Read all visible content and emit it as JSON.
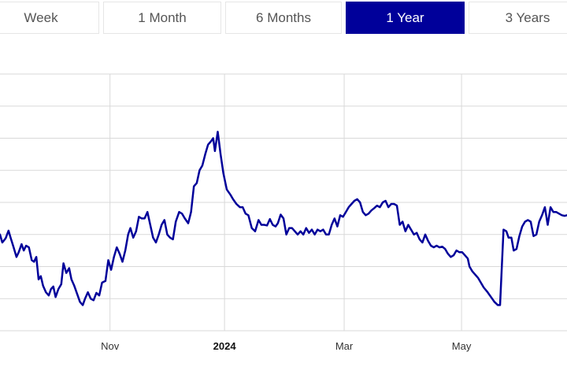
{
  "tabs": [
    {
      "label": "Week",
      "active": false
    },
    {
      "label": "1 Month",
      "active": false
    },
    {
      "label": "6 Months",
      "active": false
    },
    {
      "label": "1 Year",
      "active": true
    },
    {
      "label": "3 Years",
      "active": false
    }
  ],
  "colors": {
    "accent": "#00009a",
    "line": "#00009a",
    "grid": "#d9d9d9"
  },
  "chart_data": {
    "type": "line",
    "title": "",
    "xlabel": "",
    "ylabel": "",
    "grid": true,
    "legend": "none",
    "x_ticks": [
      {
        "label": "Nov",
        "x": 0.194,
        "bold": false
      },
      {
        "label": "2024",
        "x": 0.396,
        "bold": true
      },
      {
        "label": "Mar",
        "x": 0.607,
        "bold": false
      },
      {
        "label": "May",
        "x": 0.814,
        "bold": false
      }
    ],
    "y_gridline_count": 8,
    "ylim": [
      0,
      8
    ],
    "series": [
      {
        "points": [
          [
            0.0,
            3.0
          ],
          [
            0.004,
            2.75
          ],
          [
            0.01,
            2.88
          ],
          [
            0.015,
            3.12
          ],
          [
            0.019,
            2.88
          ],
          [
            0.024,
            2.6
          ],
          [
            0.029,
            2.3
          ],
          [
            0.033,
            2.45
          ],
          [
            0.038,
            2.7
          ],
          [
            0.042,
            2.5
          ],
          [
            0.046,
            2.65
          ],
          [
            0.051,
            2.6
          ],
          [
            0.056,
            2.2
          ],
          [
            0.06,
            2.15
          ],
          [
            0.064,
            2.3
          ],
          [
            0.068,
            1.6
          ],
          [
            0.072,
            1.7
          ],
          [
            0.076,
            1.4
          ],
          [
            0.081,
            1.2
          ],
          [
            0.086,
            1.1
          ],
          [
            0.09,
            1.3
          ],
          [
            0.094,
            1.38
          ],
          [
            0.098,
            1.05
          ],
          [
            0.103,
            1.3
          ],
          [
            0.108,
            1.45
          ],
          [
            0.112,
            2.1
          ],
          [
            0.117,
            1.8
          ],
          [
            0.122,
            1.95
          ],
          [
            0.126,
            1.6
          ],
          [
            0.131,
            1.4
          ],
          [
            0.136,
            1.15
          ],
          [
            0.141,
            0.9
          ],
          [
            0.146,
            0.8
          ],
          [
            0.15,
            1.0
          ],
          [
            0.155,
            1.2
          ],
          [
            0.16,
            1.0
          ],
          [
            0.165,
            0.95
          ],
          [
            0.17,
            1.18
          ],
          [
            0.175,
            1.1
          ],
          [
            0.18,
            1.5
          ],
          [
            0.186,
            1.55
          ],
          [
            0.191,
            2.2
          ],
          [
            0.196,
            1.9
          ],
          [
            0.201,
            2.3
          ],
          [
            0.206,
            2.6
          ],
          [
            0.211,
            2.4
          ],
          [
            0.216,
            2.15
          ],
          [
            0.221,
            2.5
          ],
          [
            0.226,
            3.0
          ],
          [
            0.23,
            3.2
          ],
          [
            0.235,
            2.9
          ],
          [
            0.24,
            3.1
          ],
          [
            0.245,
            3.55
          ],
          [
            0.25,
            3.5
          ],
          [
            0.255,
            3.5
          ],
          [
            0.26,
            3.7
          ],
          [
            0.265,
            3.3
          ],
          [
            0.27,
            2.9
          ],
          [
            0.275,
            2.75
          ],
          [
            0.28,
            3.0
          ],
          [
            0.285,
            3.3
          ],
          [
            0.29,
            3.45
          ],
          [
            0.295,
            3.0
          ],
          [
            0.3,
            2.9
          ],
          [
            0.305,
            2.85
          ],
          [
            0.31,
            3.4
          ],
          [
            0.316,
            3.7
          ],
          [
            0.321,
            3.65
          ],
          [
            0.326,
            3.5
          ],
          [
            0.332,
            3.35
          ],
          [
            0.337,
            3.7
          ],
          [
            0.342,
            4.5
          ],
          [
            0.347,
            4.6
          ],
          [
            0.352,
            5.0
          ],
          [
            0.357,
            5.15
          ],
          [
            0.362,
            5.5
          ],
          [
            0.367,
            5.8
          ],
          [
            0.372,
            5.9
          ],
          [
            0.376,
            6.0
          ],
          [
            0.379,
            5.6
          ],
          [
            0.384,
            6.2
          ],
          [
            0.389,
            5.5
          ],
          [
            0.394,
            4.9
          ],
          [
            0.4,
            4.4
          ],
          [
            0.406,
            4.25
          ],
          [
            0.411,
            4.1
          ],
          [
            0.417,
            3.95
          ],
          [
            0.423,
            3.85
          ],
          [
            0.428,
            3.85
          ],
          [
            0.433,
            3.65
          ],
          [
            0.438,
            3.6
          ],
          [
            0.444,
            3.2
          ],
          [
            0.45,
            3.1
          ],
          [
            0.456,
            3.45
          ],
          [
            0.461,
            3.3
          ],
          [
            0.466,
            3.3
          ],
          [
            0.471,
            3.28
          ],
          [
            0.476,
            3.48
          ],
          [
            0.481,
            3.3
          ],
          [
            0.486,
            3.25
          ],
          [
            0.49,
            3.35
          ],
          [
            0.495,
            3.62
          ],
          [
            0.5,
            3.5
          ],
          [
            0.505,
            3.0
          ],
          [
            0.51,
            3.2
          ],
          [
            0.515,
            3.2
          ],
          [
            0.52,
            3.1
          ],
          [
            0.525,
            3.0
          ],
          [
            0.53,
            3.1
          ],
          [
            0.535,
            3.0
          ],
          [
            0.54,
            3.2
          ],
          [
            0.545,
            3.05
          ],
          [
            0.55,
            3.15
          ],
          [
            0.555,
            3.0
          ],
          [
            0.56,
            3.15
          ],
          [
            0.565,
            3.1
          ],
          [
            0.57,
            3.15
          ],
          [
            0.575,
            3.0
          ],
          [
            0.58,
            3.0
          ],
          [
            0.585,
            3.3
          ],
          [
            0.59,
            3.5
          ],
          [
            0.595,
            3.25
          ],
          [
            0.6,
            3.6
          ],
          [
            0.605,
            3.55
          ],
          [
            0.61,
            3.7
          ],
          [
            0.615,
            3.85
          ],
          [
            0.62,
            3.95
          ],
          [
            0.625,
            4.05
          ],
          [
            0.63,
            4.1
          ],
          [
            0.635,
            4.0
          ],
          [
            0.64,
            3.7
          ],
          [
            0.645,
            3.6
          ],
          [
            0.65,
            3.65
          ],
          [
            0.655,
            3.75
          ],
          [
            0.66,
            3.82
          ],
          [
            0.665,
            3.9
          ],
          [
            0.67,
            3.85
          ],
          [
            0.675,
            4.0
          ],
          [
            0.68,
            4.05
          ],
          [
            0.685,
            3.85
          ],
          [
            0.69,
            3.95
          ],
          [
            0.695,
            3.95
          ],
          [
            0.7,
            3.9
          ],
          [
            0.705,
            3.3
          ],
          [
            0.71,
            3.4
          ],
          [
            0.715,
            3.1
          ],
          [
            0.72,
            3.3
          ],
          [
            0.725,
            3.15
          ],
          [
            0.73,
            3.0
          ],
          [
            0.735,
            3.05
          ],
          [
            0.74,
            2.85
          ],
          [
            0.745,
            2.75
          ],
          [
            0.75,
            3.0
          ],
          [
            0.755,
            2.8
          ],
          [
            0.76,
            2.65
          ],
          [
            0.765,
            2.6
          ],
          [
            0.77,
            2.65
          ],
          [
            0.775,
            2.6
          ],
          [
            0.78,
            2.62
          ],
          [
            0.785,
            2.55
          ],
          [
            0.79,
            2.4
          ],
          [
            0.795,
            2.3
          ],
          [
            0.8,
            2.35
          ],
          [
            0.805,
            2.5
          ],
          [
            0.81,
            2.45
          ],
          [
            0.815,
            2.45
          ],
          [
            0.82,
            2.35
          ],
          [
            0.825,
            2.25
          ],
          [
            0.828,
            2.0
          ],
          [
            0.833,
            1.85
          ],
          [
            0.838,
            1.75
          ],
          [
            0.843,
            1.65
          ],
          [
            0.848,
            1.5
          ],
          [
            0.853,
            1.35
          ],
          [
            0.86,
            1.2
          ],
          [
            0.866,
            1.05
          ],
          [
            0.872,
            0.9
          ],
          [
            0.878,
            0.8
          ],
          [
            0.882,
            0.8
          ],
          [
            0.888,
            3.15
          ],
          [
            0.893,
            3.1
          ],
          [
            0.897,
            2.9
          ],
          [
            0.902,
            2.9
          ],
          [
            0.906,
            2.5
          ],
          [
            0.911,
            2.55
          ],
          [
            0.916,
            2.95
          ],
          [
            0.921,
            3.25
          ],
          [
            0.926,
            3.4
          ],
          [
            0.931,
            3.45
          ],
          [
            0.936,
            3.4
          ],
          [
            0.941,
            2.95
          ],
          [
            0.946,
            3.0
          ],
          [
            0.951,
            3.4
          ],
          [
            0.956,
            3.6
          ],
          [
            0.961,
            3.85
          ],
          [
            0.966,
            3.3
          ],
          [
            0.971,
            3.85
          ],
          [
            0.976,
            3.7
          ],
          [
            0.981,
            3.7
          ],
          [
            0.986,
            3.65
          ],
          [
            0.991,
            3.6
          ],
          [
            0.996,
            3.58
          ],
          [
            1.0,
            3.6
          ]
        ]
      }
    ]
  }
}
